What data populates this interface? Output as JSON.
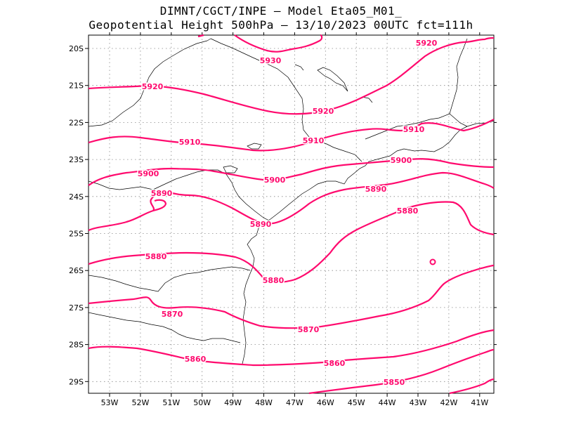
{
  "header": {
    "line1": "DIMNT/CGCT/INPE –  Model Eta05_M01_",
    "line2": "Geopotential Height 500hPa –  13/10/2023 00UTC fct=111h"
  },
  "map": {
    "lon_labels": [
      "53W",
      "52W",
      "51W",
      "50W",
      "49W",
      "48W",
      "47W",
      "46W",
      "45W",
      "44W",
      "43W",
      "42W",
      "41W"
    ],
    "lat_labels": [
      "20S",
      "21S",
      "22S",
      "23S",
      "24S",
      "25S",
      "26S",
      "27S",
      "28S",
      "29S"
    ],
    "contour_color": "#ff0a6e",
    "contour_labels": [
      {
        "text": "5930"
      },
      {
        "text": "5920"
      },
      {
        "text": "5920"
      },
      {
        "text": "5920"
      },
      {
        "text": "5910"
      },
      {
        "text": "5910"
      },
      {
        "text": "5910"
      },
      {
        "text": "5900"
      },
      {
        "text": "5900"
      },
      {
        "text": "5900"
      },
      {
        "text": "5890"
      },
      {
        "text": "5890"
      },
      {
        "text": "5890"
      },
      {
        "text": "5880"
      },
      {
        "text": "5880"
      },
      {
        "text": "5880"
      },
      {
        "text": "5870"
      },
      {
        "text": "5870"
      },
      {
        "text": "5860"
      },
      {
        "text": "5860"
      },
      {
        "text": "5850"
      }
    ]
  }
}
